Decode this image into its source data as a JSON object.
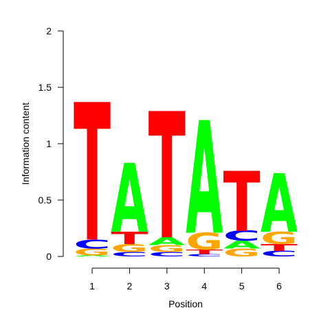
{
  "chart_data": {
    "type": "sequence-logo",
    "xlabel": "Position",
    "ylabel": "Information content",
    "ylim": [
      0,
      2
    ],
    "yticks": [
      "0",
      "0.5",
      "1",
      "1.5",
      "2"
    ],
    "xticks": [
      "1",
      "2",
      "3",
      "4",
      "5",
      "6"
    ],
    "colors": {
      "A": "#00ff00",
      "C": "#0000ff",
      "G": "#ffa500",
      "T": "#ff0000"
    },
    "positions": [
      {
        "position": "1",
        "stack": [
          {
            "letter": "A",
            "height": 0.01
          },
          {
            "letter": "G",
            "height": 0.06
          },
          {
            "letter": "C",
            "height": 0.08
          },
          {
            "letter": "T",
            "height": 1.22
          }
        ]
      },
      {
        "position": "2",
        "stack": [
          {
            "letter": "C",
            "height": 0.04
          },
          {
            "letter": "G",
            "height": 0.07
          },
          {
            "letter": "T",
            "height": 0.11
          },
          {
            "letter": "A",
            "height": 0.61
          }
        ]
      },
      {
        "position": "3",
        "stack": [
          {
            "letter": "C",
            "height": 0.04
          },
          {
            "letter": "G",
            "height": 0.06
          },
          {
            "letter": "A",
            "height": 0.07
          },
          {
            "letter": "T",
            "height": 1.12
          }
        ]
      },
      {
        "position": "4",
        "stack": [
          {
            "letter": "C",
            "height": 0.02
          },
          {
            "letter": "T",
            "height": 0.04
          },
          {
            "letter": "G",
            "height": 0.15
          },
          {
            "letter": "A",
            "height": 1.0
          }
        ]
      },
      {
        "position": "5",
        "stack": [
          {
            "letter": "G",
            "height": 0.07
          },
          {
            "letter": "A",
            "height": 0.07
          },
          {
            "letter": "C",
            "height": 0.09
          },
          {
            "letter": "T",
            "height": 0.53
          }
        ]
      },
      {
        "position": "6",
        "stack": [
          {
            "letter": "C",
            "height": 0.05
          },
          {
            "letter": "T",
            "height": 0.06
          },
          {
            "letter": "G",
            "height": 0.11
          },
          {
            "letter": "A",
            "height": 0.52
          }
        ]
      }
    ]
  }
}
